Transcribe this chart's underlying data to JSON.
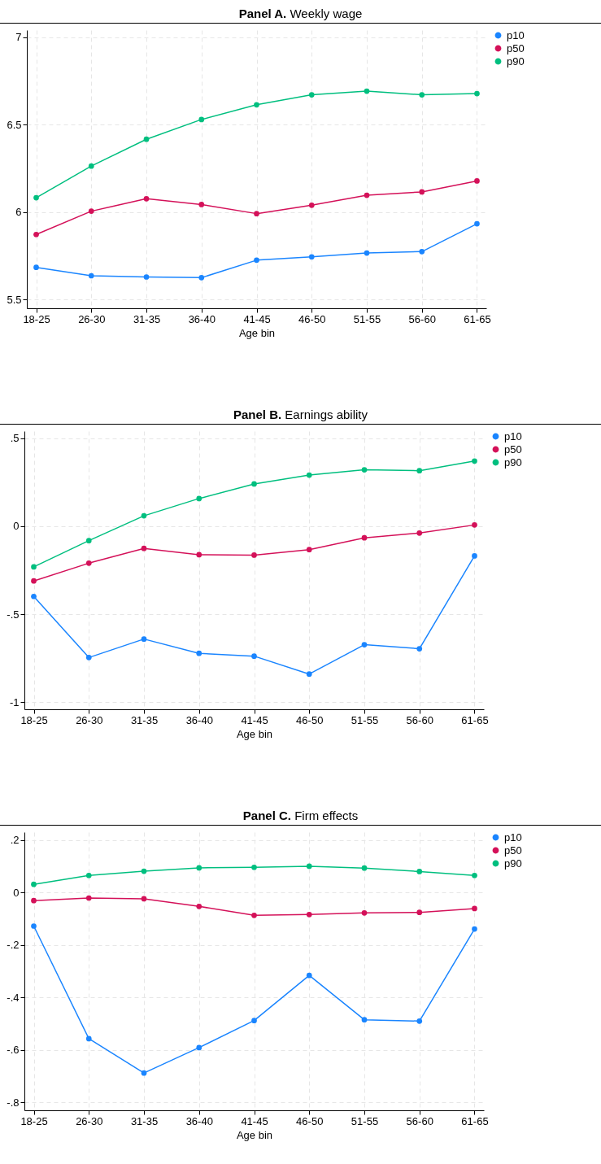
{
  "chart_data": [
    {
      "type": "line",
      "title": "Panel A.  Weekly wage",
      "xlabel": "Age bin",
      "categories": [
        "18-25",
        "26-30",
        "31-35",
        "36-40",
        "41-45",
        "46-50",
        "51-55",
        "56-60",
        "61-65"
      ],
      "ylim": [
        5.45,
        7.04
      ],
      "yticks": [
        5.5,
        6,
        6.5,
        7
      ],
      "grid": true,
      "legend": "right",
      "marker": "circle",
      "series": [
        {
          "name": "p10",
          "color": "#1a85ff",
          "values": [
            5.684,
            5.636,
            5.629,
            5.625,
            5.725,
            5.744,
            5.766,
            5.774,
            5.933
          ]
        },
        {
          "name": "p50",
          "color": "#d41159",
          "values": [
            5.872,
            6.005,
            6.076,
            6.043,
            5.991,
            6.039,
            6.096,
            6.115,
            6.178
          ]
        },
        {
          "name": "p90",
          "color": "#00bf7f",
          "values": [
            6.082,
            6.263,
            6.416,
            6.529,
            6.613,
            6.67,
            6.691,
            6.67,
            6.677
          ]
        }
      ]
    },
    {
      "type": "line",
      "title": "Panel B. Earnings ability",
      "xlabel": "Age bin",
      "categories": [
        "18-25",
        "26-30",
        "31-35",
        "36-40",
        "41-45",
        "46-50",
        "51-55",
        "56-60",
        "61-65"
      ],
      "ylim": [
        -1.04,
        0.54
      ],
      "yticks": [
        {
          "value": -1,
          "label": "-1"
        },
        {
          "value": -0.5,
          "label": "-.5"
        },
        0,
        {
          "value": 0.5,
          "label": ".5"
        }
      ],
      "grid": true,
      "legend": "right",
      "marker": "circle",
      "series": [
        {
          "name": "p10",
          "color": "#1a85ff",
          "values": [
            -0.399,
            -0.746,
            -0.641,
            -0.722,
            -0.738,
            -0.84,
            -0.673,
            -0.696,
            -0.169
          ]
        },
        {
          "name": "p50",
          "color": "#d41159",
          "values": [
            -0.311,
            -0.21,
            -0.126,
            -0.162,
            -0.164,
            -0.133,
            -0.066,
            -0.039,
            0.007
          ]
        },
        {
          "name": "p90",
          "color": "#00bf7f",
          "values": [
            -0.231,
            -0.082,
            0.059,
            0.157,
            0.24,
            0.29,
            0.32,
            0.315,
            0.37
          ]
        }
      ]
    },
    {
      "type": "line",
      "title": "Panel C. Firm effects",
      "xlabel": "Age bin",
      "categories": [
        "18-25",
        "26-30",
        "31-35",
        "36-40",
        "41-45",
        "46-50",
        "51-55",
        "56-60",
        "61-65"
      ],
      "ylim": [
        -0.83,
        0.23
      ],
      "yticks": [
        {
          "value": -0.8,
          "label": "-.8"
        },
        {
          "value": -0.6,
          "label": "-.6"
        },
        {
          "value": -0.4,
          "label": "-.4"
        },
        {
          "value": -0.2,
          "label": "-.2"
        },
        0,
        {
          "value": 0.2,
          "label": ".2"
        }
      ],
      "grid": true,
      "legend": "right",
      "marker": "circle",
      "series": [
        {
          "name": "p10",
          "color": "#1a85ff",
          "values": [
            -0.128,
            -0.557,
            -0.688,
            -0.591,
            -0.488,
            -0.316,
            -0.485,
            -0.49,
            -0.139
          ]
        },
        {
          "name": "p50",
          "color": "#d41159",
          "values": [
            -0.031,
            -0.021,
            -0.024,
            -0.053,
            -0.087,
            -0.084,
            -0.078,
            -0.076,
            -0.061
          ]
        },
        {
          "name": "p90",
          "color": "#00bf7f",
          "values": [
            0.031,
            0.065,
            0.081,
            0.094,
            0.096,
            0.1,
            0.093,
            0.08,
            0.065
          ]
        }
      ]
    }
  ]
}
